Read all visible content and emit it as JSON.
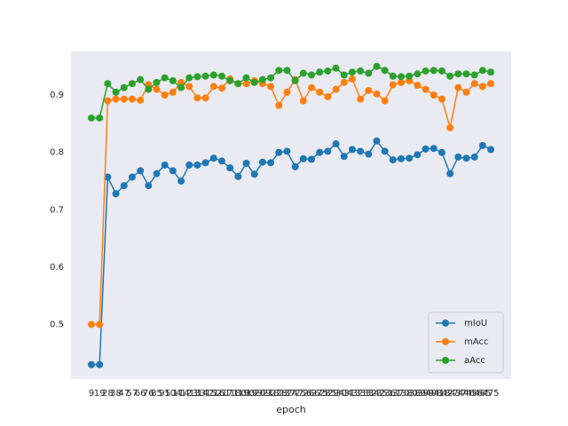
{
  "chart_data": {
    "type": "line",
    "xlabel": "epoch",
    "categories": [
      9,
      19,
      28,
      38,
      47,
      57,
      66,
      76,
      85,
      95,
      104,
      114,
      123,
      133,
      142,
      152,
      161,
      171,
      180,
      190,
      199,
      209,
      218,
      228,
      237,
      247,
      256,
      266,
      275,
      285,
      294,
      304,
      313,
      323,
      332,
      342,
      351,
      361,
      370,
      380,
      389,
      399,
      408,
      418,
      427,
      437,
      446,
      456,
      465,
      475
    ],
    "series": [
      {
        "name": "mIoU",
        "color": "#1f77b4",
        "values": [
          0.43,
          0.43,
          0.757,
          0.728,
          0.742,
          0.757,
          0.768,
          0.742,
          0.763,
          0.778,
          0.768,
          0.75,
          0.778,
          0.778,
          0.782,
          0.79,
          0.785,
          0.773,
          0.758,
          0.781,
          0.762,
          0.783,
          0.782,
          0.8,
          0.802,
          0.775,
          0.789,
          0.788,
          0.8,
          0.802,
          0.815,
          0.793,
          0.805,
          0.802,
          0.797,
          0.82,
          0.802,
          0.787,
          0.789,
          0.79,
          0.796,
          0.806,
          0.807,
          0.8,
          0.763,
          0.792,
          0.79,
          0.792,
          0.812,
          0.805
        ]
      },
      {
        "name": "mAcc",
        "color": "#ff7f0e",
        "values": [
          0.5,
          0.5,
          0.89,
          0.893,
          0.893,
          0.893,
          0.891,
          0.918,
          0.91,
          0.9,
          0.905,
          0.922,
          0.915,
          0.895,
          0.895,
          0.915,
          0.912,
          0.928,
          0.92,
          0.92,
          0.925,
          0.92,
          0.915,
          0.882,
          0.905,
          0.927,
          0.89,
          0.913,
          0.905,
          0.897,
          0.91,
          0.922,
          0.928,
          0.893,
          0.908,
          0.902,
          0.89,
          0.918,
          0.922,
          0.925,
          0.917,
          0.91,
          0.9,
          0.893,
          0.843,
          0.913,
          0.905,
          0.92,
          0.915,
          0.92
        ]
      },
      {
        "name": "aAcc",
        "color": "#2ca02c",
        "values": [
          0.86,
          0.86,
          0.92,
          0.905,
          0.913,
          0.92,
          0.927,
          0.91,
          0.922,
          0.93,
          0.925,
          0.913,
          0.93,
          0.932,
          0.933,
          0.935,
          0.933,
          0.925,
          0.92,
          0.93,
          0.922,
          0.927,
          0.93,
          0.943,
          0.943,
          0.925,
          0.938,
          0.935,
          0.94,
          0.942,
          0.947,
          0.935,
          0.94,
          0.942,
          0.938,
          0.95,
          0.943,
          0.933,
          0.932,
          0.933,
          0.937,
          0.942,
          0.943,
          0.942,
          0.933,
          0.937,
          0.937,
          0.935,
          0.943,
          0.94
        ]
      }
    ],
    "ylim": [
      0.405,
      0.976
    ],
    "yticks": [
      0.5,
      0.6,
      0.7,
      0.8,
      0.9
    ],
    "grid": false,
    "legend": "lower right"
  }
}
